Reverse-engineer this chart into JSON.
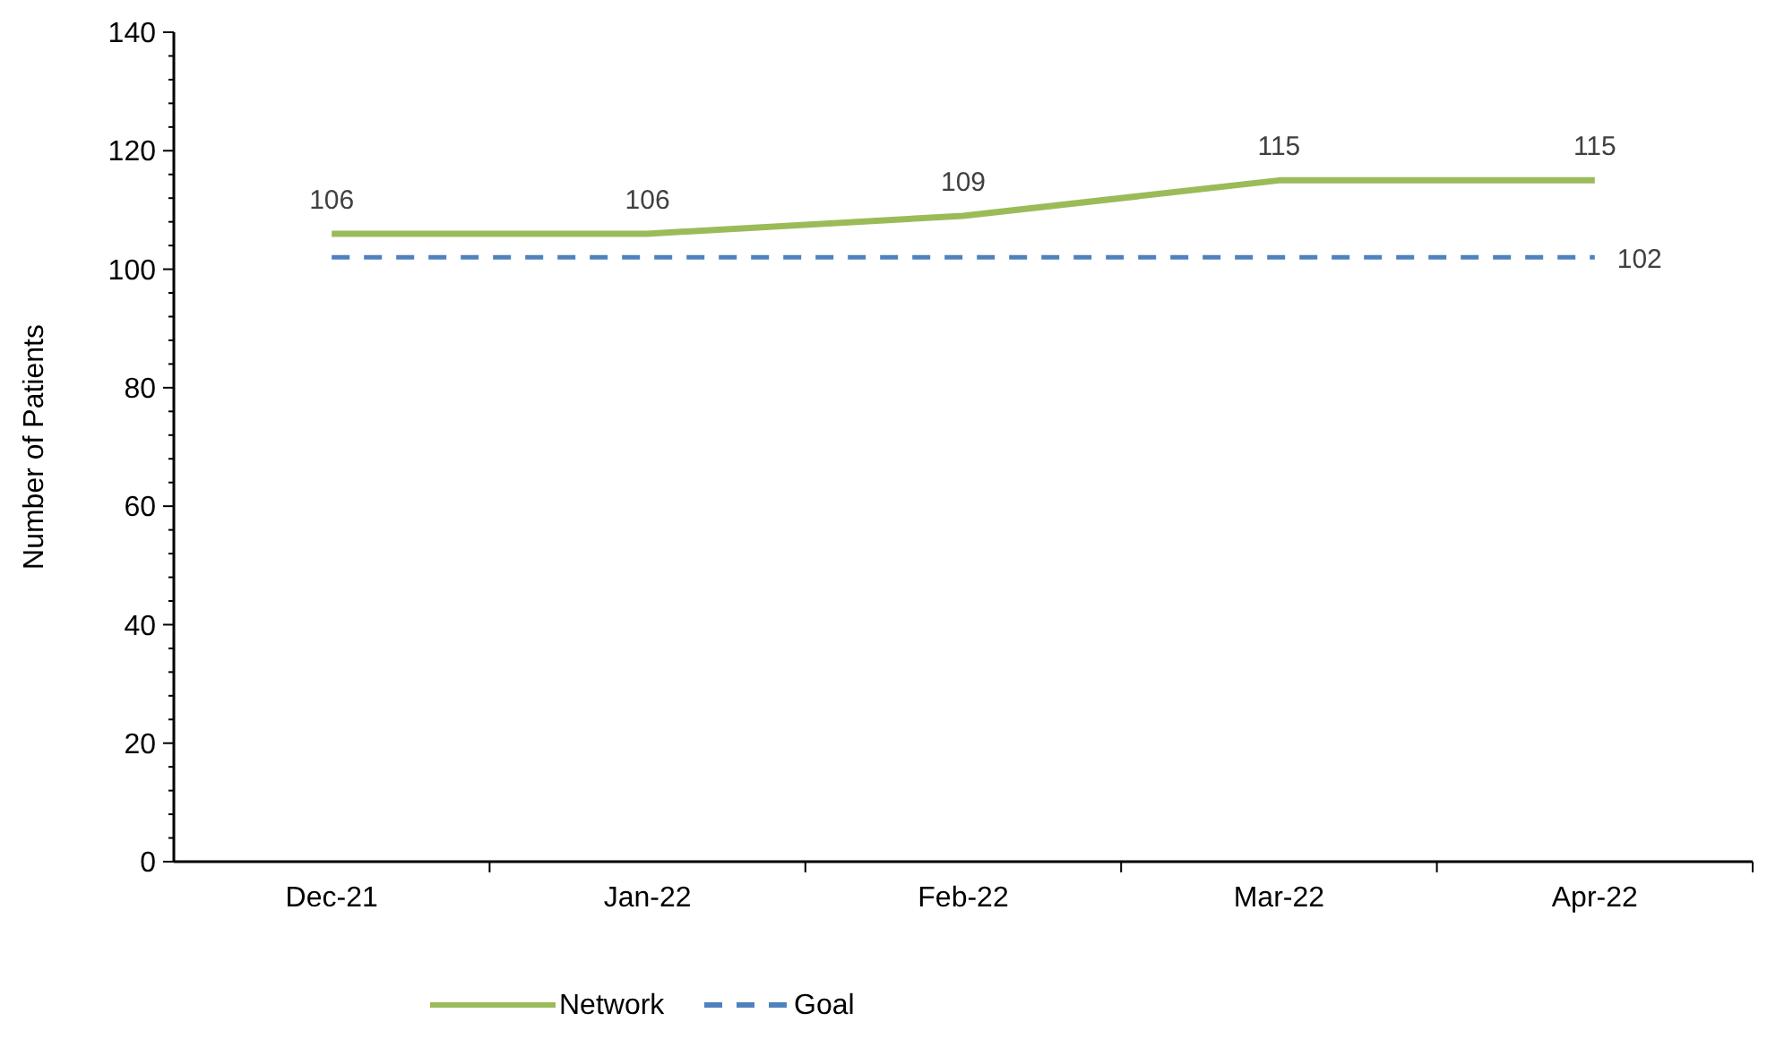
{
  "chart_data": {
    "type": "line",
    "ylabel": "Number of Patients",
    "categories": [
      "Dec-21",
      "Jan-22",
      "Feb-22",
      "Mar-22",
      "Apr-22"
    ],
    "series": [
      {
        "name": "Network",
        "color": "#9bbb59",
        "values": [
          106,
          106,
          109,
          115,
          115
        ],
        "line_style": "solid",
        "value_labels": [
          "106",
          "106",
          "109",
          "115",
          "115"
        ]
      },
      {
        "name": "Goal",
        "color": "#4f81bd",
        "values": [
          102,
          102,
          102,
          102,
          102
        ],
        "line_style": "dashed",
        "value_labels": [
          null,
          null,
          null,
          null,
          "102"
        ]
      }
    ],
    "ylim": [
      0,
      140
    ],
    "yticks": [
      0,
      {
        "value": 4,
        "label": null
      },
      {
        "value": 8,
        "label": null
      },
      {
        "value": 12,
        "label": null
      },
      {
        "value": 16,
        "label": null
      },
      20,
      {
        "value": 24,
        "label": null
      },
      {
        "value": 28,
        "label": null
      },
      {
        "value": 32,
        "label": null
      },
      {
        "value": 36,
        "label": null
      },
      40,
      {
        "value": 44,
        "label": null
      },
      {
        "value": 48,
        "label": null
      },
      {
        "value": 52,
        "label": null
      },
      {
        "value": 56,
        "label": null
      },
      60,
      {
        "value": 64,
        "label": null
      },
      {
        "value": 68,
        "label": null
      },
      {
        "value": 72,
        "label": null
      },
      {
        "value": 76,
        "label": null
      },
      80,
      {
        "value": 84,
        "label": null
      },
      {
        "value": 88,
        "label": null
      },
      {
        "value": 92,
        "label": null
      },
      {
        "value": 96,
        "label": null
      },
      100,
      {
        "value": 104,
        "label": null
      },
      {
        "value": 108,
        "label": null
      },
      {
        "value": 112,
        "label": null
      },
      {
        "value": 116,
        "label": null
      },
      120,
      {
        "value": 124,
        "label": null
      },
      {
        "value": 128,
        "label": null
      },
      {
        "value": 132,
        "label": null
      },
      {
        "value": 136,
        "label": null
      },
      140
    ],
    "grid": false,
    "legend": "bottom",
    "marker": "none"
  }
}
